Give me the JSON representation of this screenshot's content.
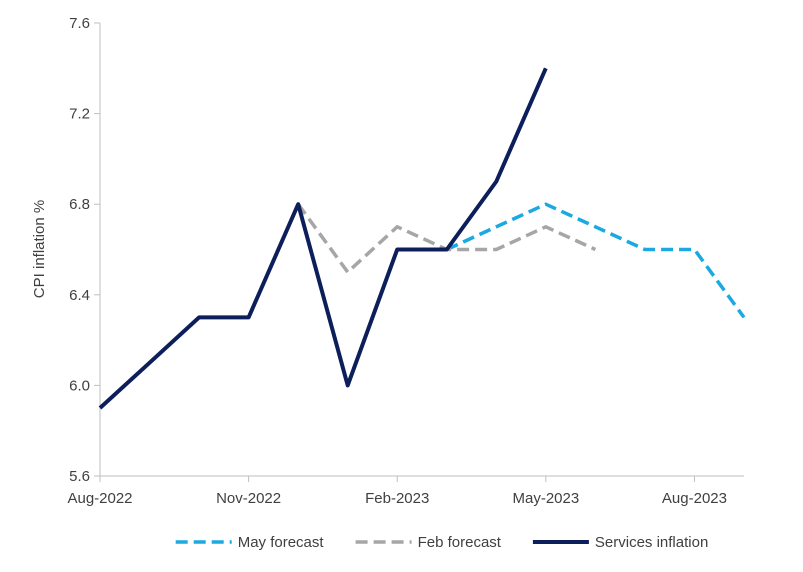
{
  "chart_data": {
    "type": "line",
    "xlabel": "",
    "ylabel": "CPI inflation %",
    "ylim": [
      5.6,
      7.6
    ],
    "yticks": [
      "5.6",
      "6.0",
      "6.4",
      "6.8",
      "7.2",
      "7.6"
    ],
    "xlim": [
      "Aug-2022",
      "Sep-2023"
    ],
    "x_tick_labels": [
      "Aug-2022",
      "Nov-2022",
      "Feb-2023",
      "May-2023",
      "Aug-2023"
    ],
    "grid": false,
    "legend_position": "bottom",
    "series": [
      {
        "name": "May forecast",
        "color": "#1ba9e1",
        "style": "dashed",
        "x": [
          "Mar-2023",
          "Apr-2023",
          "May-2023",
          "Jun-2023",
          "Jul-2023",
          "Aug-2023",
          "Sep-2023"
        ],
        "values": [
          6.6,
          6.7,
          6.8,
          6.7,
          6.6,
          6.6,
          6.3
        ]
      },
      {
        "name": "Feb forecast",
        "color": "#a6a6a6",
        "style": "dashed",
        "x": [
          "Dec-2022",
          "Jan-2023",
          "Feb-2023",
          "Mar-2023",
          "Apr-2023",
          "May-2023",
          "Jun-2023"
        ],
        "values": [
          6.8,
          6.5,
          6.7,
          6.6,
          6.6,
          6.7,
          6.6
        ]
      },
      {
        "name": "Services inflation",
        "color": "#0c1f5b",
        "style": "solid",
        "x": [
          "Aug-2022",
          "Sep-2022",
          "Oct-2022",
          "Nov-2022",
          "Dec-2022",
          "Jan-2023",
          "Feb-2023",
          "Mar-2023",
          "Apr-2023",
          "May-2023"
        ],
        "values": [
          5.9,
          6.1,
          6.3,
          6.3,
          6.8,
          6.0,
          6.6,
          6.6,
          6.9,
          7.4
        ]
      }
    ]
  }
}
